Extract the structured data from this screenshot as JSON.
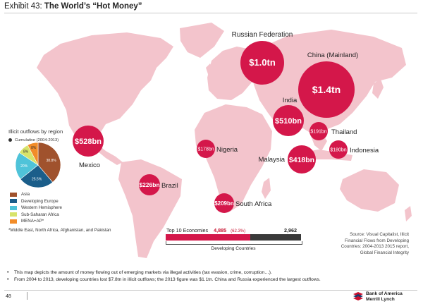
{
  "header": {
    "exhibit": "Exhibit 43:",
    "title": "The World’s “Hot Money”"
  },
  "chart_data": {
    "type": "bubble-map",
    "title": "The World’s “Hot Money”",
    "countries": [
      {
        "name": "Russian Federation",
        "label": "$1.0tn",
        "value_bn": 1000
      },
      {
        "name": "China (Mainland)",
        "label": "$1.4tn",
        "value_bn": 1400
      },
      {
        "name": "India",
        "label": "$510bn",
        "value_bn": 510
      },
      {
        "name": "Thailand",
        "label": "$191bn",
        "value_bn": 191
      },
      {
        "name": "Mexico",
        "label": "$528bn",
        "value_bn": 528
      },
      {
        "name": "Nigeria",
        "label": "$178bn",
        "value_bn": 178
      },
      {
        "name": "Malaysia",
        "label": "$418bn",
        "value_bn": 418
      },
      {
        "name": "Indonesia",
        "label": "$180bn",
        "value_bn": 180
      },
      {
        "name": "Brazil",
        "label": "$226bn",
        "value_bn": 226
      },
      {
        "name": "South Africa",
        "label": "$209bn",
        "value_bn": 209
      }
    ],
    "pie": {
      "title": "Illicit outflows by region",
      "subtitle": "Cumulative (2004-2013)",
      "slices": [
        {
          "name": "Asia",
          "label": "38.8%",
          "value": 38.8,
          "color": "#a0522d"
        },
        {
          "name": "Developing Europe",
          "label": "25.5%",
          "value": 25.5,
          "color": "#1b5e8a"
        },
        {
          "name": "Western Hemisphere",
          "label": "20%",
          "value": 20.0,
          "color": "#4fc3d9"
        },
        {
          "name": "Sub-Saharan Africa",
          "label": "8%",
          "value": 8.0,
          "color": "#d7e36a"
        },
        {
          "name": "MENA+AP*",
          "label": "8%",
          "value": 7.7,
          "color": "#f28c28"
        }
      ],
      "footnote": "*Middle East, North Africa, Afghanistan, and Pakistan"
    },
    "bar": {
      "label": "Top 10 Economies",
      "top10_value": "4,885",
      "top10_pct": "(62.3%)",
      "total": "2,962",
      "top10_share": 0.623,
      "caption": "Developing Countries"
    }
  },
  "source": [
    "Source: Visual Capitalist, Illicit",
    "Financial Flows from Developing",
    "Countries: 2004-2013 2015 report,",
    "Global Financial Integrity"
  ],
  "bullets": [
    "This map depicts the amount of money flowing out of emerging markets via illegal activities (tax evasion, crime, corruption…).",
    "From 2004 to 2013, developing countries lost $7.8tn in illicit outflows; the 2013 figure was $1.1tn. China and Russia experienced the largest outflows."
  ],
  "footer": {
    "page": "48",
    "brand_line1": "Bank of America",
    "brand_line2": "Merrill Lynch"
  },
  "colors": {
    "bubble": "#d4174a",
    "land": "#f3c4cc",
    "bar_dark": "#3a3a3a"
  }
}
